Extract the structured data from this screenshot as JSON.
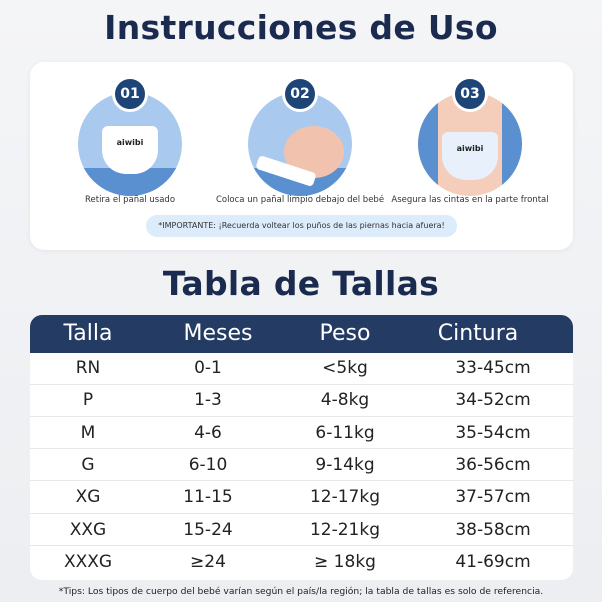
{
  "instructions": {
    "title": "Instrucciones de Uso",
    "steps": [
      {
        "number": "01",
        "label": "Retira el pañal usado",
        "brand": "aiwibi"
      },
      {
        "number": "02",
        "label": "Coloca un pañal limpio debajo del bebé"
      },
      {
        "number": "03",
        "label": "Asegura las cintas en la parte frontal",
        "brand": "aiwibi"
      }
    ],
    "important": "*IMPORTANTE: ¡Recuerda voltear los puños de las piernas hacia afuera!"
  },
  "size_table": {
    "title": "Tabla de Tallas",
    "headers": [
      "Talla",
      "Meses",
      "Peso",
      "Cintura"
    ],
    "rows": [
      [
        "RN",
        "0-1",
        "<5kg",
        "33-45cm"
      ],
      [
        "P",
        "1-3",
        "4-8kg",
        "34-52cm"
      ],
      [
        "M",
        "4-6",
        "6-11kg",
        "35-54cm"
      ],
      [
        "G",
        "6-10",
        "9-14kg",
        "36-56cm"
      ],
      [
        "XG",
        "11-15",
        "12-17kg",
        "37-57cm"
      ],
      [
        "XXG",
        "15-24",
        "12-21kg",
        "38-58cm"
      ],
      [
        "XXXG",
        "≥24",
        "≥ 18kg",
        "41-69cm"
      ]
    ]
  },
  "tips": "*Tips: Los tipos de cuerpo del bebé varían según el país/la región; la tabla de tallas es solo de referencia.",
  "colors": {
    "navy": "#1b2a4f",
    "header": "#243b63",
    "badge": "#1e4577",
    "pill": "#dcecfb"
  }
}
